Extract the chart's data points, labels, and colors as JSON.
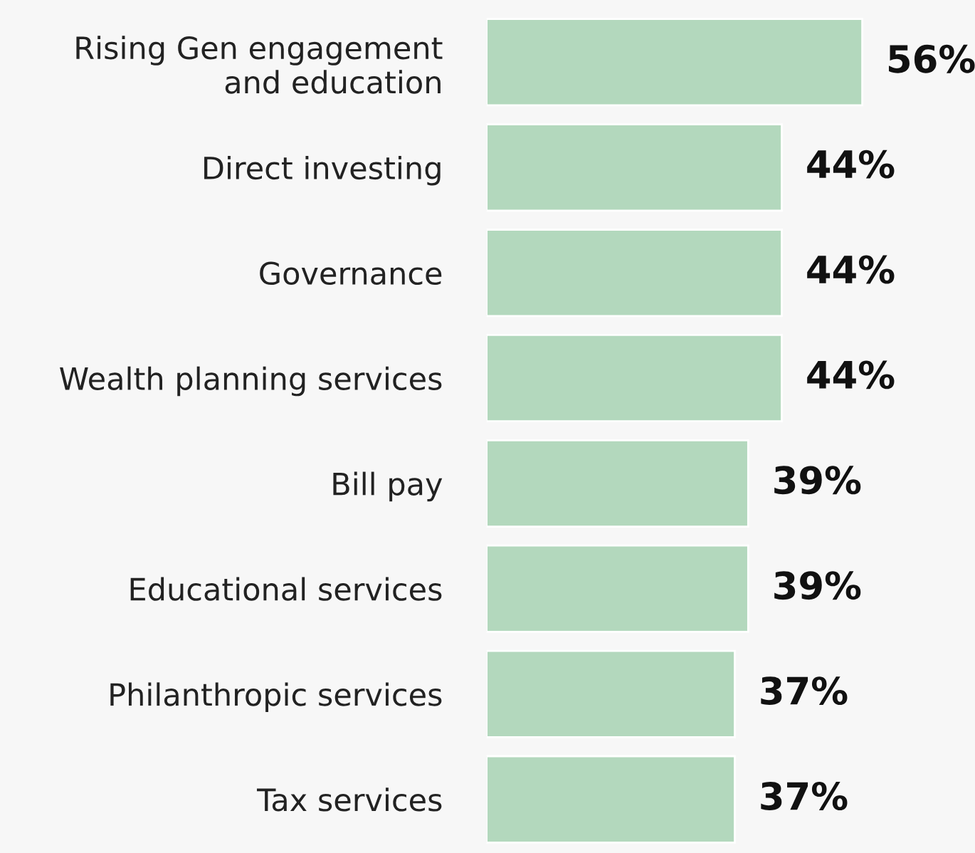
{
  "chart_data": {
    "type": "bar",
    "orientation": "horizontal",
    "categories": [
      "Rising Gen engagement\nand education",
      "Direct investing",
      "Governance",
      "Wealth planning services",
      "Bill pay",
      "Educational services",
      "Philanthropic services",
      "Tax services"
    ],
    "values": [
      56,
      44,
      44,
      44,
      39,
      39,
      37,
      37
    ],
    "value_labels": [
      "56%",
      "44%",
      "44%",
      "44%",
      "39%",
      "39%",
      "37%",
      "37%"
    ],
    "color": "#b3d8bd",
    "grid": false,
    "legend": false
  }
}
